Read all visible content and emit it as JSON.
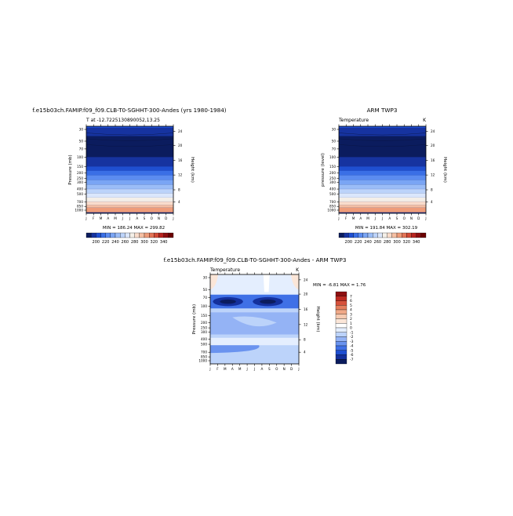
{
  "colors": {
    "band_scale": [
      "#0b1c5e",
      "#1633a0",
      "#1f4fd1",
      "#3a6fe6",
      "#5b8cf0",
      "#7aa5f4",
      "#9bbdf7",
      "#bcd3fa",
      "#dbe7fc",
      "#f4efe8",
      "#f9dccb",
      "#f5bfa3",
      "#ee9c7a",
      "#e27456",
      "#d24a37",
      "#b8241f",
      "#8e0f10",
      "#6b0000"
    ],
    "diff_scale": [
      "#0b1c5e",
      "#14309c",
      "#1f4fd1",
      "#3f70e6",
      "#6a93ef",
      "#94b3f5",
      "#bcd3fa",
      "#e4eefe",
      "#ffffff",
      "#fbe6d8",
      "#f6cbb2",
      "#f0a988",
      "#e57f5e",
      "#d6513b",
      "#bd2a22",
      "#8e0f10"
    ],
    "axis": "#000000"
  },
  "chart_data": [
    {
      "type": "heatmap",
      "title": "f.e15b03ch.FAMIP.f09_f09.CLB-T0-SGHHT-300-Andes (yrs 1980-1984)",
      "subtitle_left": "T at -12.7225130890052,13.25",
      "subtitle_right": "",
      "x_ticks": [
        "J",
        "F",
        "M",
        "A",
        "M",
        "J",
        "J",
        "A",
        "S",
        "O",
        "N",
        "D",
        "J"
      ],
      "ylabel": "Pressure (mb)",
      "y_ticks": [
        "30",
        "50",
        "70",
        "100",
        "150",
        "200",
        "250",
        "300",
        "400",
        "500",
        "700",
        "850",
        "1000"
      ],
      "ylabel_right": "Height (km)",
      "y_right_ticks": [
        "24",
        "20",
        "16",
        "12",
        "8",
        "4"
      ],
      "minmax": "MIN = 186.24  MAX = 299.82",
      "colorbar_labels": [
        "200",
        "220",
        "240",
        "260",
        "280",
        "300",
        "320",
        "340"
      ]
    },
    {
      "type": "heatmap",
      "title": "ARM TWP3",
      "subtitle_left": "Temperature",
      "subtitle_right": "K",
      "x_ticks": [
        "J",
        "F",
        "M",
        "A",
        "M",
        "J",
        "J",
        "A",
        "S",
        "O",
        "N",
        "D",
        "J"
      ],
      "ylabel": "pressure (level)",
      "y_ticks": [
        "30",
        "50",
        "70",
        "100",
        "150",
        "200",
        "250",
        "300",
        "400",
        "500",
        "700",
        "850",
        "1000"
      ],
      "ylabel_right": "Height (km)",
      "y_right_ticks": [
        "24",
        "20",
        "16",
        "12",
        "8",
        "4"
      ],
      "minmax": "MIN = 191.84  MAX = 302.19",
      "colorbar_labels": [
        "200",
        "220",
        "240",
        "260",
        "280",
        "300",
        "320",
        "340"
      ]
    },
    {
      "type": "heatmap",
      "title": "f.e15b03ch.FAMIP.f09_f09.CLB-T0-SGHHT-300-Andes - ARM TWP3",
      "subtitle_left": "Temperature",
      "subtitle_right": "K",
      "x_ticks": [
        "J",
        "F",
        "M",
        "A",
        "M",
        "J",
        "J",
        "A",
        "S",
        "O",
        "N",
        "D",
        "J"
      ],
      "ylabel": "Pressure (mb)",
      "y_ticks": [
        "30",
        "50",
        "70",
        "100",
        "150",
        "200",
        "250",
        "300",
        "400",
        "500",
        "700",
        "850",
        "1000"
      ],
      "ylabel_right": "Height (km)",
      "y_right_ticks": [
        "24",
        "20",
        "16",
        "12",
        "8",
        "4"
      ],
      "minmax": "MIN =   -6.81  MAX =    1.76",
      "colorbar_labels": [
        "7",
        "6",
        "5",
        "4",
        "3",
        "2",
        "1",
        "0",
        "-1",
        "-2",
        "-3",
        "-4",
        "-5",
        "-6",
        "-7"
      ]
    }
  ]
}
